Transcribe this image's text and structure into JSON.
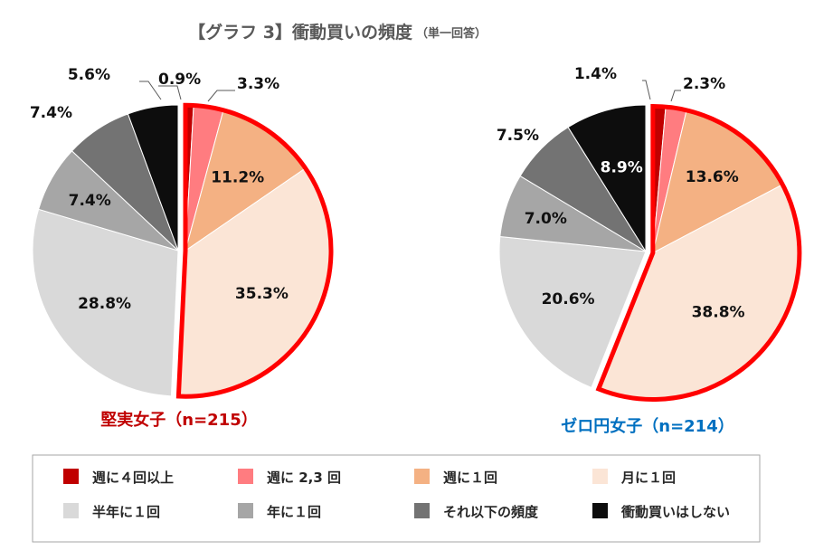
{
  "chart_data": {
    "type": "pie",
    "title": "【グラフ 3】衝動買いの頻度",
    "subtitle": "（単一回答）",
    "categories": [
      "週に４回以上",
      "週に 2,3 回",
      "週に１回",
      "月に１回",
      "半年に１回",
      "年に１回",
      "それ以下の頻度",
      "衝動買いはしない"
    ],
    "colors": [
      "#c00000",
      "#ff7c80",
      "#f4b183",
      "#fbe5d6",
      "#d9d9d9",
      "#a6a6a6",
      "#737373",
      "#0d0d0d"
    ],
    "highlight_color": "#ff0000",
    "series": [
      {
        "name": "堅実女子（n=215）",
        "values": [
          0.9,
          3.3,
          11.2,
          35.3,
          28.8,
          7.4,
          7.4,
          5.6
        ],
        "labels": [
          "0.9%",
          "3.3%",
          "11.2%",
          "35.3%",
          "28.8%",
          "7.4%",
          "7.4%",
          "5.6%"
        ],
        "highlight": [
          0,
          1,
          2,
          3
        ]
      },
      {
        "name": "ゼロ円女子（n=214）",
        "values": [
          1.4,
          2.3,
          13.6,
          38.8,
          20.6,
          7.0,
          7.5,
          8.9
        ],
        "labels": [
          "1.4%",
          "2.3%",
          "13.6%",
          "38.8%",
          "20.6%",
          "7.0%",
          "7.5%",
          "8.9%"
        ],
        "highlight": [
          0,
          1,
          2,
          3
        ]
      }
    ],
    "legend": {
      "position": "bottom",
      "items": [
        "週に４回以上",
        "週に 2,3 回",
        "週に１回",
        "月に１回",
        "半年に１回",
        "年に１回",
        "それ以下の頻度",
        "衝動買いはしない"
      ]
    }
  }
}
